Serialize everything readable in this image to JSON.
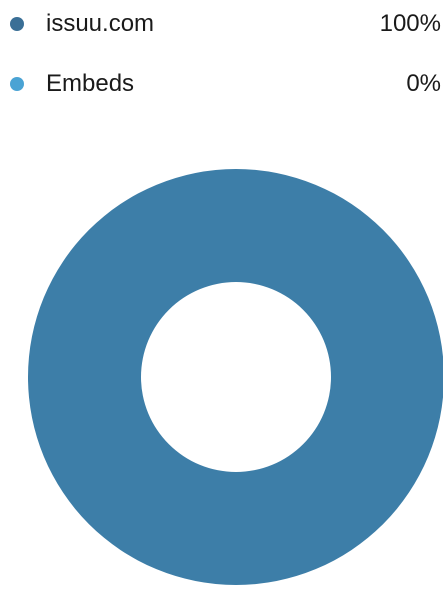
{
  "chart_data": {
    "type": "pie",
    "donut": true,
    "title": "",
    "legend_position": "top",
    "slices": [
      {
        "label": "issuu.com",
        "value": 100,
        "display": "100%",
        "color": "#3d7ea8",
        "dot_color": "#3a6f96"
      },
      {
        "label": "Embeds",
        "value": 0,
        "display": "0%",
        "color": "#4aa3d4",
        "dot_color": "#4aa3d4"
      }
    ]
  }
}
